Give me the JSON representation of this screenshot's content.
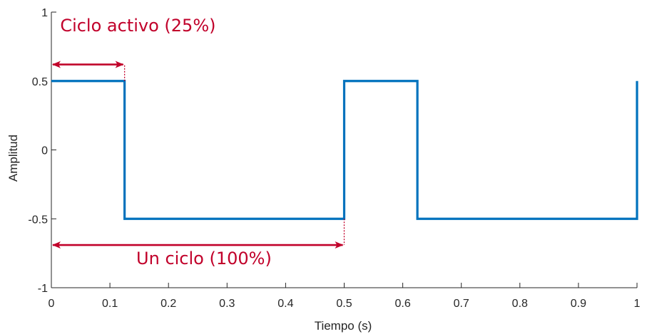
{
  "chart_data": {
    "type": "line",
    "title": "",
    "xlabel": "Tiempo (s)",
    "ylabel": "Amplitud",
    "xlim": [
      0,
      1
    ],
    "ylim": [
      -1,
      1
    ],
    "grid": false,
    "xticks": [
      0,
      0.1,
      0.2,
      0.3,
      0.4,
      0.5,
      0.6,
      0.7,
      0.8,
      0.9,
      1
    ],
    "xtick_labels": [
      "0",
      "0.1",
      "0.2",
      "0.3",
      "0.4",
      "0.5",
      "0.6",
      "0.7",
      "0.8",
      "0.9",
      "1"
    ],
    "yticks": [
      -1,
      -0.5,
      0,
      0.5,
      1
    ],
    "ytick_labels": [
      "-1",
      "-0.5",
      "0",
      "0.5",
      "1"
    ],
    "series": [
      {
        "color": "#0072BD",
        "x": [
          0,
          0.125,
          0.125,
          0.5,
          0.5,
          0.625,
          0.625,
          1,
          1
        ],
        "y": [
          0.5,
          0.5,
          -0.5,
          -0.5,
          0.5,
          0.5,
          -0.5,
          -0.5,
          0.5
        ]
      }
    ],
    "annotations": [
      {
        "text": "Ciclo activo (25%)",
        "x_start": 0,
        "x_end": 0.125,
        "arrow_y": 0.62,
        "marker_from_y": 0.5,
        "text_x": 0.015,
        "text_y": 0.86
      },
      {
        "text": "Un ciclo (100%)",
        "x_start": 0,
        "x_end": 0.5,
        "arrow_y": -0.69,
        "marker_from_y": -0.5,
        "text_x": 0.145,
        "text_y": -0.83
      }
    ],
    "annotation_color": "#C1002A"
  }
}
